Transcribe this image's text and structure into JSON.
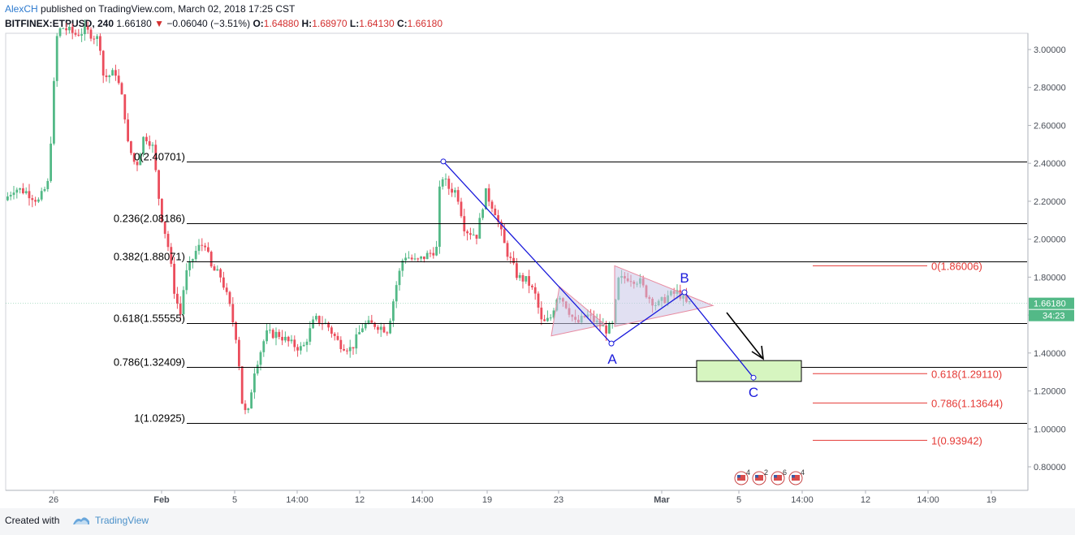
{
  "header": {
    "author": "AlexCH",
    "published": "published on TradingView.com, March 02, 2018 17:25 CST",
    "symbol": "BITFINEX:ETPUSD, 240",
    "last": "1.66180",
    "change": "−0.06040 (−3.51%)",
    "o_label": "O:",
    "o_value": "1.64880",
    "h_label": "H:",
    "h_value": "1.68970",
    "l_label": "L:",
    "l_value": "1.64130",
    "c_label": "C:",
    "c_value": "1.66180"
  },
  "footer": {
    "created_with": "Created with",
    "brand": "TradingView"
  },
  "colors": {
    "up": "#53b987",
    "down": "#eb4d5c",
    "fib_left": "#000000",
    "fib_right": "#e53935",
    "wave": "#1a1adb",
    "triangle_fill": "#c9c6e8",
    "triangle_stroke": "#e88aa0",
    "target_box": "#d6f5c0"
  },
  "chart_data": {
    "type": "candlestick",
    "symbol": "BITFINEX:ETPUSD",
    "timeframe": "240",
    "y_ticks": [
      "3.00000",
      "2.80000",
      "2.60000",
      "2.40000",
      "2.20000",
      "2.00000",
      "1.80000",
      "1.60000",
      "1.40000",
      "1.20000",
      "1.00000",
      "0.80000"
    ],
    "ylim": [
      0.7,
      3.12
    ],
    "x_ticks": [
      "26",
      "Feb",
      "5",
      "14:00",
      "12",
      "14:00",
      "19",
      "23",
      "Mar",
      "5",
      "14:00",
      "12",
      "14:00",
      "19"
    ],
    "last_price_label": "1.66180",
    "countdown_label": "34:23",
    "fib_retracement_left": [
      {
        "label": "0(2.40701)",
        "value": 2.40701
      },
      {
        "label": "0.236(2.08186)",
        "value": 2.08186
      },
      {
        "label": "0.382(1.88071)",
        "value": 1.88071
      },
      {
        "label": "0.618(1.55555)",
        "value": 1.55555
      },
      {
        "label": "0.786(1.32409)",
        "value": 1.32409
      },
      {
        "label": "1(1.02925)",
        "value": 1.02925
      }
    ],
    "fib_extension_right": [
      {
        "label": "0(1.86006)",
        "value": 1.86006
      },
      {
        "label": "0.618(1.29110)",
        "value": 1.2911
      },
      {
        "label": "0.786(1.13644)",
        "value": 1.13644
      },
      {
        "label": "1(0.93942)",
        "value": 0.93942
      }
    ],
    "wave_labels": [
      "A",
      "B",
      "C"
    ],
    "wave_points": [
      {
        "x": 546,
        "y": 2.41
      },
      {
        "x": 753,
        "y": 1.45
      },
      {
        "x": 843,
        "y": 1.72
      },
      {
        "x": 928,
        "y": 1.27
      }
    ],
    "target_zone": {
      "from": 1.25,
      "to": 1.36
    },
    "triangles": [
      {
        "points": [
          [
            689,
            1.75
          ],
          [
            679,
            1.49
          ],
          [
            745,
            1.55
          ]
        ]
      },
      {
        "points": [
          [
            757,
            1.86
          ],
          [
            757,
            1.54
          ],
          [
            878,
            1.65
          ]
        ]
      }
    ],
    "events": [
      {
        "flag": "US",
        "count": "4"
      },
      {
        "flag": "US",
        "count": "2"
      },
      {
        "flag": "US",
        "count": "6"
      },
      {
        "flag": "US",
        "count": "4"
      }
    ]
  }
}
